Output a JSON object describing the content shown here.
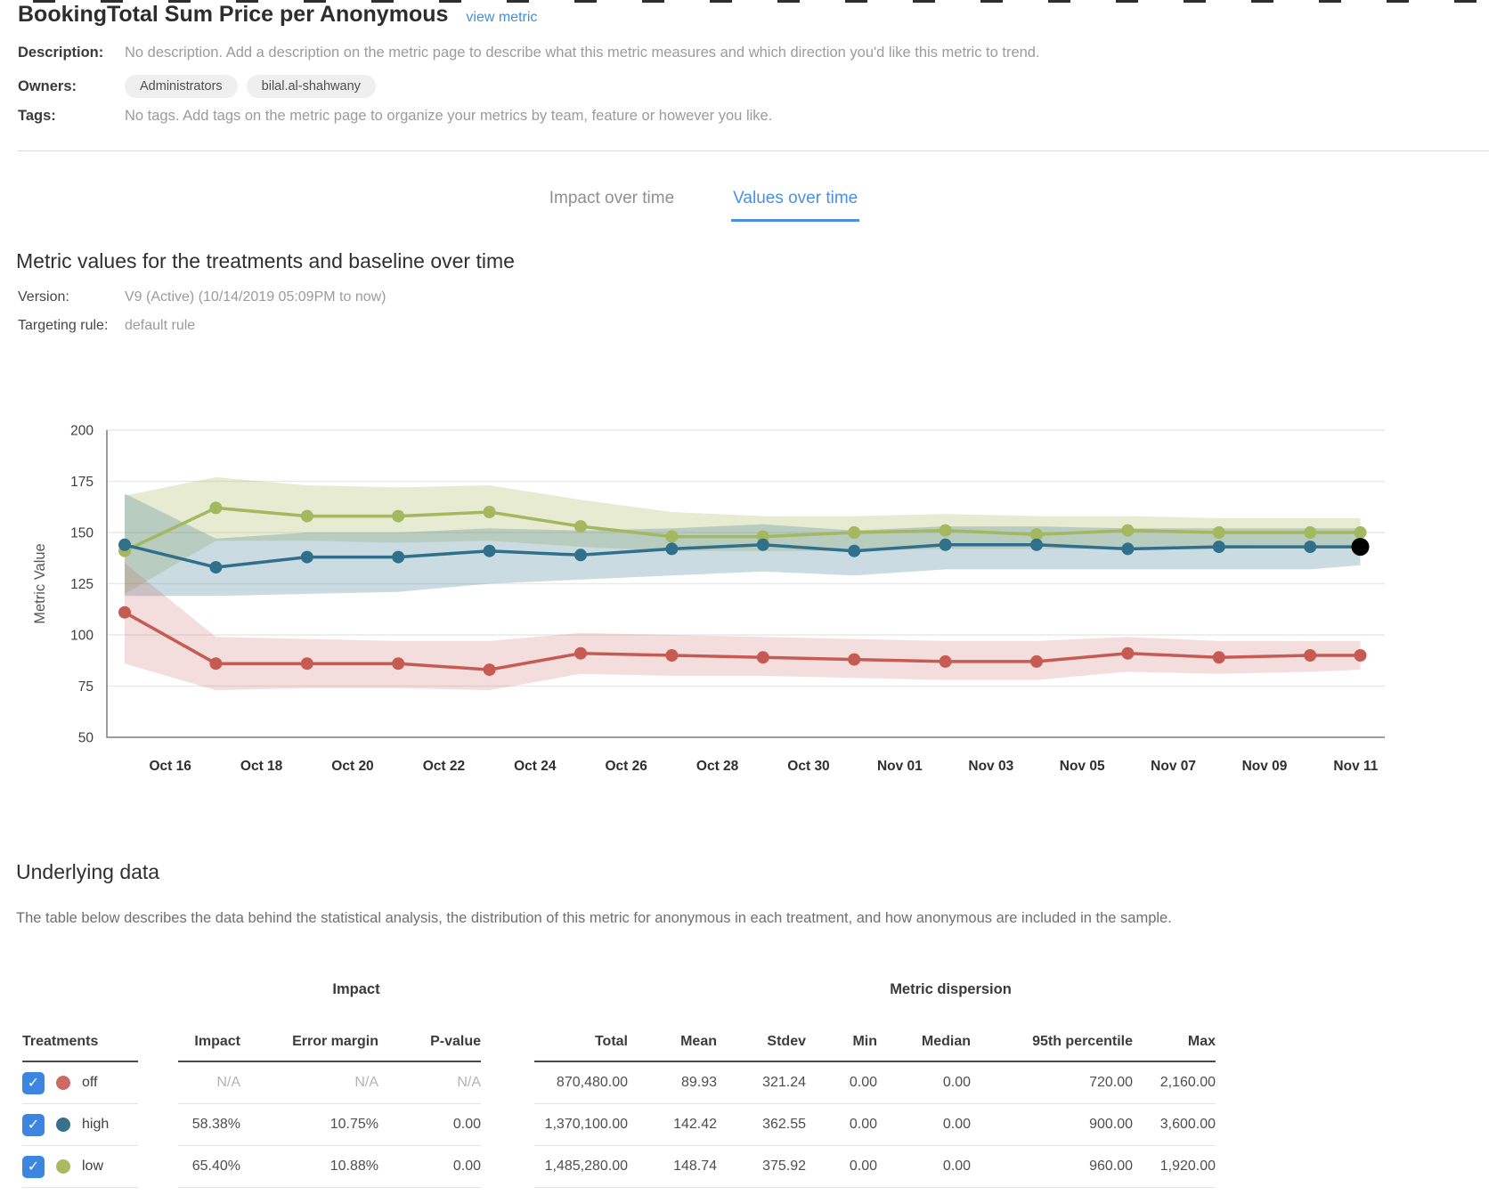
{
  "top": {
    "title": "BookingTotal Sum Price per Anonymous",
    "view_metric_label": "view metric"
  },
  "meta": {
    "description_label": "Description:",
    "description_text": "No description. Add a description on the metric page to describe what this metric measures and which direction you'd like this metric to trend.",
    "owners_label": "Owners:",
    "owners": [
      "Administrators",
      "bilal.al-shahwany"
    ],
    "tags_label": "Tags:",
    "tags_text": "No tags. Add tags on the metric page to organize your metrics by team, feature or however you like."
  },
  "tabs": [
    {
      "label": "Impact over time",
      "active": false
    },
    {
      "label": "Values over time",
      "active": true
    }
  ],
  "section": {
    "title": "Metric values for the treatments and baseline over time",
    "version_label": "Version:",
    "version_value": "V9 (Active) (10/14/2019 05:09PM to now)",
    "targeting_label": "Targeting rule:",
    "targeting_value": "default rule"
  },
  "chart_data": {
    "type": "line",
    "ylabel": "Metric Value",
    "ylim": [
      50,
      200
    ],
    "yticks": [
      50,
      75,
      100,
      125,
      150,
      175,
      200
    ],
    "grid": true,
    "x_tick_labels": [
      "Oct 16",
      "Oct 18",
      "Oct 20",
      "Oct 22",
      "Oct 24",
      "Oct 26",
      "Oct 28",
      "Oct 30",
      "Nov 01",
      "Nov 03",
      "Nov 05",
      "Nov 07",
      "Nov 09",
      "Nov 11"
    ],
    "x_tick_days": [
      1,
      3,
      5,
      7,
      9,
      11,
      13,
      15,
      17,
      19,
      21,
      23,
      25,
      27
    ],
    "x_days": [
      0,
      2,
      4,
      6,
      8,
      10,
      12,
      14,
      16,
      18,
      20,
      22,
      24,
      26,
      27.1
    ],
    "series": [
      {
        "name": "off",
        "color": "#c65b53",
        "band_color": "rgba(198,91,83,0.20)",
        "values": [
          111,
          86,
          86,
          86,
          83,
          91,
          90,
          89,
          88,
          87,
          87,
          91,
          89,
          90,
          90
        ],
        "band_high": [
          135,
          99,
          98,
          97,
          97,
          101,
          100,
          99,
          98,
          97,
          97,
          99,
          97,
          97,
          97
        ],
        "band_low": [
          86,
          73,
          74,
          74,
          73,
          81,
          80,
          80,
          79,
          78,
          78,
          82,
          81,
          82,
          83
        ]
      },
      {
        "name": "high",
        "color": "#30708b",
        "band_color": "rgba(48,112,139,0.25)",
        "values": [
          144,
          133,
          138,
          138,
          141,
          139,
          142,
          144,
          141,
          144,
          144,
          142,
          143,
          143,
          143
        ],
        "band_high": [
          169,
          147,
          150,
          150,
          152,
          151,
          152,
          154,
          151,
          153,
          153,
          152,
          152,
          152,
          152
        ],
        "band_low": [
          119,
          119,
          120,
          121,
          125,
          127,
          129,
          131,
          129,
          132,
          132,
          132,
          132,
          132,
          134
        ]
      },
      {
        "name": "low",
        "color": "#a4b85f",
        "band_color": "rgba(164,184,95,0.28)",
        "values": [
          141,
          162,
          158,
          158,
          160,
          153,
          148,
          148,
          150,
          151,
          149,
          151,
          150,
          150,
          150
        ],
        "band_high": [
          168,
          177,
          173,
          172,
          173,
          166,
          160,
          158,
          158,
          159,
          158,
          158,
          157,
          157,
          157
        ],
        "band_low": [
          120,
          146,
          146,
          145,
          146,
          143,
          141,
          141,
          141,
          142,
          142,
          142,
          142,
          143,
          143
        ]
      }
    ],
    "current_point": {
      "series": "high",
      "color": "#000000"
    },
    "legend_position": "none"
  },
  "underlying": {
    "title": "Underlying data",
    "description": "The table below describes the data behind the statistical analysis, the distribution of this metric for anonymous in each treatment, and how anonymous are included in the sample."
  },
  "table": {
    "treatments_header": "Treatments",
    "impact_group_header": "Impact",
    "dispersion_group_header": "Metric dispersion",
    "impact_columns": [
      "Impact",
      "Error margin",
      "P-value"
    ],
    "dispersion_columns": [
      "Total",
      "Mean",
      "Stdev",
      "Min",
      "Median",
      "95th percentile",
      "Max"
    ],
    "checkbox_color": "#3c86e2",
    "rows": [
      {
        "treatment": "off",
        "dot_color": "#cd6a64",
        "checked": true,
        "impact_muted": true,
        "impact": [
          "N/A",
          "N/A",
          "N/A"
        ],
        "dispersion": [
          "870,480.00",
          "89.93",
          "321.24",
          "0.00",
          "0.00",
          "720.00",
          "2,160.00"
        ]
      },
      {
        "treatment": "high",
        "dot_color": "#3a7089",
        "checked": true,
        "impact_muted": false,
        "impact": [
          "58.38%",
          "10.75%",
          "0.00"
        ],
        "dispersion": [
          "1,370,100.00",
          "142.42",
          "362.55",
          "0.00",
          "0.00",
          "900.00",
          "3,600.00"
        ]
      },
      {
        "treatment": "low",
        "dot_color": "#a9ba62",
        "checked": true,
        "impact_muted": false,
        "impact": [
          "65.40%",
          "10.88%",
          "0.00"
        ],
        "dispersion": [
          "1,485,280.00",
          "148.74",
          "375.92",
          "0.00",
          "0.00",
          "960.00",
          "1,920.00"
        ]
      }
    ]
  }
}
